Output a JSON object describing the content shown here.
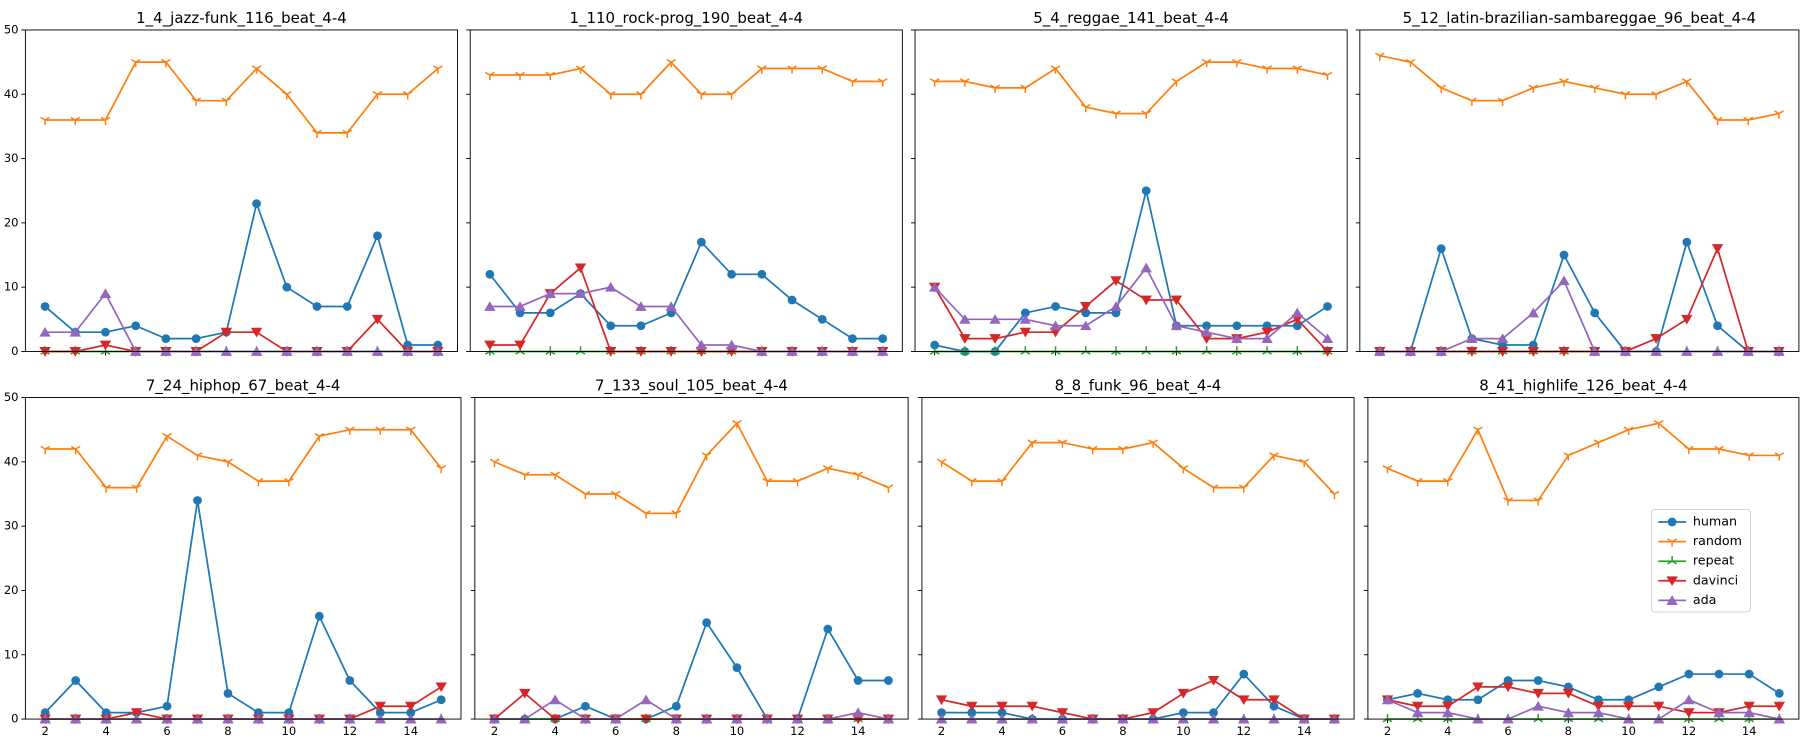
{
  "chart_data": [
    {
      "type": "line",
      "title": "1_4_jazz-funk_116_beat_4-4",
      "x": [
        2,
        3,
        4,
        5,
        6,
        7,
        8,
        9,
        10,
        11,
        12,
        13,
        14,
        15
      ],
      "xlim": [
        1.35,
        15.65
      ],
      "xticks": [
        2,
        4,
        6,
        8,
        10,
        12,
        14
      ],
      "ylim": [
        0,
        50
      ],
      "yticks": [
        0,
        10,
        20,
        30,
        40,
        50
      ],
      "series": [
        {
          "color": "#1f77b4",
          "marker": "o",
          "values": [
            7,
            3,
            3,
            4,
            2,
            2,
            3,
            23,
            10,
            7,
            7,
            18,
            1,
            1
          ]
        },
        {
          "color": "#ff7f0e",
          "marker": "1",
          "values": [
            36,
            36,
            36,
            45,
            45,
            39,
            39,
            44,
            40,
            34,
            34,
            40,
            40,
            44
          ]
        },
        {
          "color": "#2ca02c",
          "marker": "2",
          "values": [
            0,
            0,
            0,
            0,
            0,
            0,
            0,
            0,
            0,
            0,
            0,
            0,
            0,
            0
          ]
        },
        {
          "color": "#d62728",
          "marker": "v",
          "values": [
            0,
            0,
            1,
            0,
            0,
            0,
            3,
            3,
            0,
            0,
            0,
            5,
            0,
            0
          ]
        },
        {
          "color": "#9467bd",
          "marker": "^",
          "values": [
            3,
            3,
            9,
            0,
            0,
            0,
            0,
            0,
            0,
            0,
            0,
            0,
            0,
            0
          ]
        }
      ]
    },
    {
      "type": "line",
      "title": "1_110_rock-prog_190_beat_4-4",
      "x": [
        2,
        3,
        4,
        5,
        6,
        7,
        8,
        9,
        10,
        11,
        12,
        13,
        14,
        15
      ],
      "xlim": [
        1.35,
        15.65
      ],
      "xticks": [
        2,
        4,
        6,
        8,
        10,
        12,
        14
      ],
      "ylim": [
        0,
        50
      ],
      "yticks": [
        0,
        10,
        20,
        30,
        40,
        50
      ],
      "series": [
        {
          "color": "#1f77b4",
          "marker": "o",
          "values": [
            12,
            6,
            6,
            9,
            4,
            4,
            6,
            17,
            12,
            12,
            8,
            5,
            2,
            2
          ]
        },
        {
          "color": "#ff7f0e",
          "marker": "1",
          "values": [
            43,
            43,
            43,
            44,
            40,
            40,
            45,
            40,
            40,
            44,
            44,
            44,
            42,
            42
          ]
        },
        {
          "color": "#2ca02c",
          "marker": "2",
          "values": [
            0,
            0,
            0,
            0,
            0,
            0,
            0,
            0,
            0,
            0,
            0,
            0,
            0,
            0
          ]
        },
        {
          "color": "#d62728",
          "marker": "v",
          "values": [
            1,
            1,
            9,
            13,
            0,
            0,
            0,
            0,
            0,
            0,
            0,
            0,
            0,
            0
          ]
        },
        {
          "color": "#9467bd",
          "marker": "^",
          "values": [
            7,
            7,
            9,
            9,
            10,
            7,
            7,
            1,
            1,
            0,
            0,
            0,
            0,
            0
          ]
        }
      ]
    },
    {
      "type": "line",
      "title": "5_4_reggae_141_beat_4-4",
      "x": [
        2,
        3,
        4,
        5,
        6,
        7,
        8,
        9,
        10,
        11,
        12,
        13,
        14,
        15
      ],
      "xlim": [
        1.35,
        15.65
      ],
      "xticks": [
        2,
        4,
        6,
        8,
        10,
        12,
        14
      ],
      "ylim": [
        0,
        50
      ],
      "yticks": [
        0,
        10,
        20,
        30,
        40,
        50
      ],
      "series": [
        {
          "color": "#1f77b4",
          "marker": "o",
          "values": [
            1,
            0,
            0,
            6,
            7,
            6,
            6,
            25,
            4,
            4,
            4,
            4,
            4,
            7
          ]
        },
        {
          "color": "#ff7f0e",
          "marker": "1",
          "values": [
            42,
            42,
            41,
            41,
            44,
            38,
            37,
            37,
            42,
            45,
            45,
            44,
            44,
            43
          ]
        },
        {
          "color": "#2ca02c",
          "marker": "2",
          "values": [
            0,
            0,
            0,
            0,
            0,
            0,
            0,
            0,
            0,
            0,
            0,
            0,
            0,
            0
          ]
        },
        {
          "color": "#d62728",
          "marker": "v",
          "values": [
            10,
            2,
            2,
            3,
            3,
            7,
            11,
            8,
            8,
            2,
            2,
            3,
            5,
            0
          ]
        },
        {
          "color": "#9467bd",
          "marker": "^",
          "values": [
            10,
            5,
            5,
            5,
            4,
            4,
            7,
            13,
            4,
            3,
            2,
            2,
            6,
            2
          ]
        }
      ]
    },
    {
      "type": "line",
      "title": "5_12_latin-brazilian-sambareggae_96_beat_4-4",
      "x": [
        2,
        3,
        4,
        5,
        6,
        7,
        8,
        9,
        10,
        11,
        12,
        13,
        14,
        15
      ],
      "xlim": [
        1.35,
        15.65
      ],
      "xticks": [
        2,
        4,
        6,
        8,
        10,
        12,
        14
      ],
      "ylim": [
        0,
        50
      ],
      "yticks": [
        0,
        10,
        20,
        30,
        40,
        50
      ],
      "series": [
        {
          "color": "#1f77b4",
          "marker": "o",
          "values": [
            0,
            0,
            16,
            2,
            1,
            1,
            15,
            6,
            0,
            0,
            17,
            4,
            0,
            0
          ]
        },
        {
          "color": "#ff7f0e",
          "marker": "1",
          "values": [
            46,
            45,
            41,
            39,
            39,
            41,
            42,
            41,
            40,
            40,
            42,
            36,
            36,
            37
          ]
        },
        {
          "color": "#2ca02c",
          "marker": "2",
          "values": [
            0,
            0,
            0,
            0,
            0,
            0,
            0,
            0,
            0,
            0,
            0,
            0,
            0,
            0
          ]
        },
        {
          "color": "#d62728",
          "marker": "v",
          "values": [
            0,
            0,
            0,
            0,
            0,
            0,
            0,
            0,
            0,
            2,
            5,
            16,
            0,
            0
          ]
        },
        {
          "color": "#9467bd",
          "marker": "^",
          "values": [
            0,
            0,
            0,
            2,
            2,
            6,
            11,
            0,
            0,
            0,
            0,
            0,
            0,
            0
          ]
        }
      ]
    },
    {
      "type": "line",
      "title": "7_24_hiphop_67_beat_4-4",
      "x": [
        2,
        3,
        4,
        5,
        6,
        7,
        8,
        9,
        10,
        11,
        12,
        13,
        14,
        15
      ],
      "xlim": [
        1.35,
        15.65
      ],
      "xticks": [
        2,
        4,
        6,
        8,
        10,
        12,
        14
      ],
      "ylim": [
        0,
        50
      ],
      "yticks": [
        0,
        10,
        20,
        30,
        40,
        50
      ],
      "series": [
        {
          "color": "#1f77b4",
          "marker": "o",
          "values": [
            1,
            6,
            1,
            1,
            2,
            34,
            4,
            1,
            1,
            16,
            6,
            1,
            1,
            3
          ]
        },
        {
          "color": "#ff7f0e",
          "marker": "1",
          "values": [
            42,
            42,
            36,
            36,
            44,
            41,
            40,
            37,
            37,
            44,
            45,
            45,
            45,
            39
          ]
        },
        {
          "color": "#2ca02c",
          "marker": "2",
          "values": [
            0,
            0,
            0,
            0,
            0,
            0,
            0,
            0,
            0,
            0,
            0,
            0,
            0,
            0
          ]
        },
        {
          "color": "#d62728",
          "marker": "v",
          "values": [
            0,
            0,
            0,
            1,
            0,
            0,
            0,
            0,
            0,
            0,
            0,
            2,
            2,
            5
          ]
        },
        {
          "color": "#9467bd",
          "marker": "^",
          "values": [
            0,
            0,
            0,
            0,
            0,
            0,
            0,
            0,
            0,
            0,
            0,
            0,
            0,
            0
          ]
        }
      ]
    },
    {
      "type": "line",
      "title": "7_133_soul_105_beat_4-4",
      "x": [
        2,
        3,
        4,
        5,
        6,
        7,
        8,
        9,
        10,
        11,
        12,
        13,
        14,
        15
      ],
      "xlim": [
        1.35,
        15.65
      ],
      "xticks": [
        2,
        4,
        6,
        8,
        10,
        12,
        14
      ],
      "ylim": [
        0,
        50
      ],
      "yticks": [
        0,
        10,
        20,
        30,
        40,
        50
      ],
      "series": [
        {
          "color": "#1f77b4",
          "marker": "o",
          "values": [
            0,
            0,
            0,
            2,
            0,
            0,
            2,
            15,
            8,
            0,
            0,
            14,
            6,
            6
          ]
        },
        {
          "color": "#ff7f0e",
          "marker": "1",
          "values": [
            40,
            38,
            38,
            35,
            35,
            32,
            32,
            41,
            46,
            37,
            37,
            39,
            38,
            36
          ]
        },
        {
          "color": "#2ca02c",
          "marker": "2",
          "values": [
            0,
            0,
            0,
            0,
            0,
            0,
            0,
            0,
            0,
            0,
            0,
            0,
            0,
            0
          ]
        },
        {
          "color": "#d62728",
          "marker": "v",
          "values": [
            0,
            4,
            0,
            0,
            0,
            0,
            0,
            0,
            0,
            0,
            0,
            0,
            0,
            0
          ]
        },
        {
          "color": "#9467bd",
          "marker": "^",
          "values": [
            0,
            0,
            3,
            0,
            0,
            3,
            0,
            0,
            0,
            0,
            0,
            0,
            1,
            0
          ]
        }
      ]
    },
    {
      "type": "line",
      "title": "8_8_funk_96_beat_4-4",
      "x": [
        2,
        3,
        4,
        5,
        6,
        7,
        8,
        9,
        10,
        11,
        12,
        13,
        14,
        15
      ],
      "xlim": [
        1.35,
        15.65
      ],
      "xticks": [
        2,
        4,
        6,
        8,
        10,
        12,
        14
      ],
      "ylim": [
        0,
        50
      ],
      "yticks": [
        0,
        10,
        20,
        30,
        40,
        50
      ],
      "series": [
        {
          "color": "#1f77b4",
          "marker": "o",
          "values": [
            1,
            1,
            1,
            0,
            0,
            0,
            0,
            0,
            1,
            1,
            7,
            2,
            0,
            0
          ]
        },
        {
          "color": "#ff7f0e",
          "marker": "1",
          "values": [
            40,
            37,
            37,
            43,
            43,
            42,
            42,
            43,
            39,
            36,
            36,
            41,
            40,
            35
          ]
        },
        {
          "color": "#2ca02c",
          "marker": "2",
          "values": [
            0,
            0,
            0,
            0,
            0,
            0,
            0,
            0,
            0,
            0,
            0,
            0,
            0,
            0
          ]
        },
        {
          "color": "#d62728",
          "marker": "v",
          "values": [
            3,
            2,
            2,
            2,
            1,
            0,
            0,
            1,
            4,
            6,
            3,
            3,
            0,
            0
          ]
        },
        {
          "color": "#9467bd",
          "marker": "^",
          "values": [
            0,
            0,
            0,
            0,
            0,
            0,
            0,
            0,
            0,
            0,
            0,
            0,
            0,
            0
          ]
        }
      ]
    },
    {
      "type": "line",
      "title": "8_41_highlife_126_beat_4-4",
      "x": [
        2,
        3,
        4,
        5,
        6,
        7,
        8,
        9,
        10,
        11,
        12,
        13,
        14,
        15
      ],
      "xlim": [
        1.35,
        15.65
      ],
      "xticks": [
        2,
        4,
        6,
        8,
        10,
        12,
        14
      ],
      "ylim": [
        0,
        50
      ],
      "yticks": [
        0,
        10,
        20,
        30,
        40,
        50
      ],
      "legend": "center right",
      "series": [
        {
          "name": "human",
          "color": "#1f77b4",
          "marker": "o",
          "values": [
            3,
            4,
            3,
            3,
            6,
            6,
            5,
            3,
            3,
            5,
            7,
            7,
            7,
            4
          ]
        },
        {
          "name": "random",
          "color": "#ff7f0e",
          "marker": "1",
          "values": [
            39,
            37,
            37,
            45,
            34,
            34,
            41,
            43,
            45,
            46,
            42,
            42,
            41,
            41
          ]
        },
        {
          "name": "repeat",
          "color": "#2ca02c",
          "marker": "2",
          "values": [
            0,
            0,
            0,
            0,
            0,
            0,
            0,
            0,
            0,
            0,
            0,
            0,
            0,
            0
          ]
        },
        {
          "name": "davinci",
          "color": "#d62728",
          "marker": "v",
          "values": [
            3,
            2,
            2,
            5,
            5,
            4,
            4,
            2,
            2,
            2,
            1,
            1,
            2,
            2
          ]
        },
        {
          "name": "ada",
          "color": "#9467bd",
          "marker": "^",
          "values": [
            3,
            1,
            1,
            0,
            0,
            2,
            1,
            1,
            0,
            0,
            3,
            1,
            1,
            0
          ]
        }
      ]
    }
  ]
}
